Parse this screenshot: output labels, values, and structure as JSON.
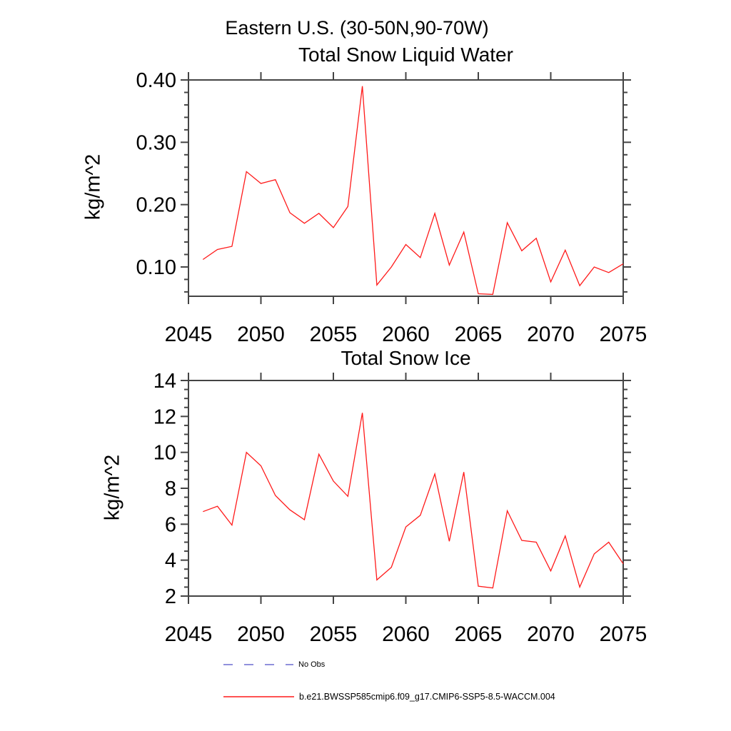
{
  "page": {
    "main_title": "Eastern U.S. (30-50N,90-70W)",
    "background_color": "#ffffff",
    "axis_color": "#444444"
  },
  "legend": {
    "position": "bottom-left",
    "items": [
      {
        "label": "No Obs",
        "color": "#6b6bd1",
        "style": "dashed"
      },
      {
        "label": "b.e21.BWSSP585cmip6.f09_g17.CMIP6-SSP5-8.5-WACCM.004",
        "color": "#ff1a1a",
        "style": "solid"
      }
    ]
  },
  "chart_data": [
    {
      "type": "line",
      "title": "Total Snow Liquid Water",
      "xlabel": "",
      "ylabel": "kg/m^2",
      "series_name": "b.e21.BWSSP585cmip6.f09_g17.CMIP6-SSP5-8.5-WACCM.004",
      "line_color": "#ff1a1a",
      "grid": false,
      "xlim": [
        2045,
        2075
      ],
      "ylim": [
        0.053,
        0.4
      ],
      "xticks": [
        2045,
        2050,
        2055,
        2060,
        2065,
        2070,
        2075
      ],
      "xtick_labels": [
        "2045",
        "2050",
        "2055",
        "2060",
        "2065",
        "2070",
        "2075"
      ],
      "yticks": [
        0.1,
        0.2,
        0.3,
        0.4
      ],
      "ytick_labels": [
        "0.10",
        "0.20",
        "0.30",
        "0.40"
      ],
      "yminor_step": 0.02,
      "x": [
        2046,
        2047,
        2048,
        2049,
        2050,
        2051,
        2052,
        2053,
        2054,
        2055,
        2056,
        2057,
        2058,
        2059,
        2060,
        2061,
        2062,
        2063,
        2064,
        2065,
        2066,
        2067,
        2068,
        2069,
        2070,
        2071,
        2072,
        2073,
        2074,
        2075
      ],
      "values": [
        0.112,
        0.128,
        0.133,
        0.253,
        0.234,
        0.24,
        0.187,
        0.17,
        0.186,
        0.163,
        0.197,
        0.39,
        0.071,
        0.1,
        0.136,
        0.115,
        0.186,
        0.103,
        0.156,
        0.057,
        0.056,
        0.171,
        0.126,
        0.146,
        0.076,
        0.127,
        0.07,
        0.1,
        0.091,
        0.105
      ]
    },
    {
      "type": "line",
      "title": "Total Snow Ice",
      "xlabel": "",
      "ylabel": "kg/m^2",
      "series_name": "b.e21.BWSSP585cmip6.f09_g17.CMIP6-SSP5-8.5-WACCM.004",
      "line_color": "#ff1a1a",
      "grid": false,
      "xlim": [
        2045,
        2075
      ],
      "ylim": [
        2,
        14
      ],
      "xticks": [
        2045,
        2050,
        2055,
        2060,
        2065,
        2070,
        2075
      ],
      "xtick_labels": [
        "2045",
        "2050",
        "2055",
        "2060",
        "2065",
        "2070",
        "2075"
      ],
      "yticks": [
        2,
        4,
        6,
        8,
        10,
        12,
        14
      ],
      "ytick_labels": [
        "2",
        "4",
        "6",
        "8",
        "10",
        "12",
        "14"
      ],
      "yminor_step": 0.5,
      "x": [
        2046,
        2047,
        2048,
        2049,
        2050,
        2051,
        2052,
        2053,
        2054,
        2055,
        2056,
        2057,
        2058,
        2059,
        2060,
        2061,
        2062,
        2063,
        2064,
        2065,
        2066,
        2067,
        2068,
        2069,
        2070,
        2071,
        2072,
        2073,
        2074,
        2075
      ],
      "values": [
        6.7,
        7.0,
        5.95,
        10.0,
        9.25,
        7.6,
        6.8,
        6.25,
        9.9,
        8.4,
        7.55,
        12.2,
        2.9,
        3.6,
        5.85,
        6.5,
        8.8,
        5.05,
        8.9,
        2.55,
        2.45,
        6.75,
        5.1,
        5.0,
        3.4,
        5.35,
        2.5,
        4.35,
        5.0,
        3.8
      ]
    }
  ]
}
